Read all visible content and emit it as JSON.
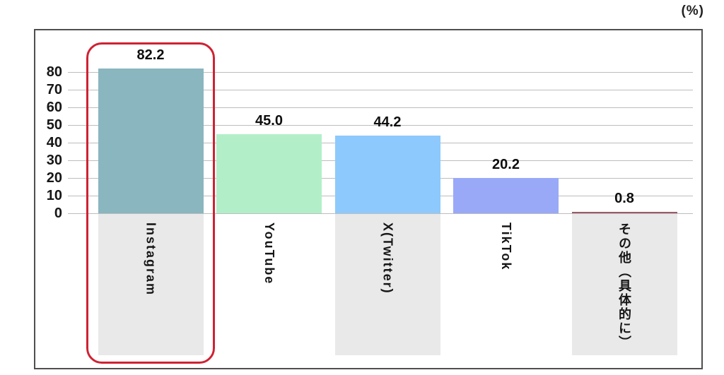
{
  "figure": {
    "unit_label": "(%)"
  },
  "chart_data": {
    "type": "bar",
    "title": "",
    "xlabel": "",
    "ylabel": "",
    "categories": [
      "Instagram",
      "YouTube",
      "X(Twitter)",
      "TikTok",
      "その他（具体的に）"
    ],
    "values": [
      82.2,
      45.0,
      44.2,
      20.2,
      0.8
    ],
    "value_labels": [
      "82.2",
      "45.0",
      "44.2",
      "20.2",
      "0.8"
    ],
    "bar_colors": [
      "#8ab6bf",
      "#b2efc9",
      "#8dc9fd",
      "#99a9f8",
      "#9c5a68"
    ],
    "y_ticks": [
      0,
      10,
      20,
      30,
      40,
      50,
      60,
      70,
      80
    ],
    "ylim": [
      0,
      88
    ],
    "grid": true,
    "legend": "none",
    "shaded_slot_indexes": [
      0,
      2,
      4
    ],
    "shaded_slot_color": "#e9e9e9",
    "gridline_color": "#bdbdbd",
    "highlight": {
      "category": "Instagram",
      "ring_color": "#cf2233"
    }
  }
}
